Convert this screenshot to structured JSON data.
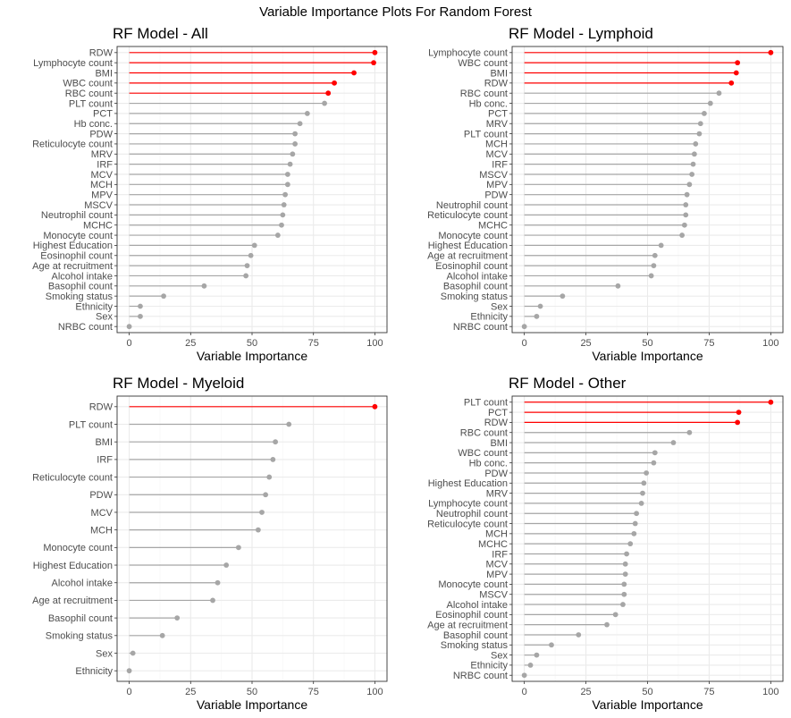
{
  "figure": {
    "title": "Variable Importance Plots For Random Forest"
  },
  "colors": {
    "highlight": "#ff0000",
    "normal": "#a6a6a6",
    "panel_border": "#333333",
    "grid_major": "#ebebeb",
    "grid_minor": "#f5f5f5",
    "tick_text": "#4d4d4d"
  },
  "chart_data": [
    {
      "type": "lollipop",
      "title": "RF Model - All",
      "xlabel": "Variable Importance",
      "ylabel": "",
      "xlim": [
        0,
        100
      ],
      "xticks": [
        "0",
        "25",
        "50",
        "75",
        "100"
      ],
      "grid": true,
      "categories": [
        "RDW",
        "Lymphocyte count",
        "BMI",
        "WBC count",
        "RBC count",
        "PLT count",
        "PCT",
        "Hb conc.",
        "PDW",
        "Reticulocyte count",
        "MRV",
        "IRF",
        "MCV",
        "MCH",
        "MPV",
        "MSCV",
        "Neutrophil count",
        "MCHC",
        "Monocyte count",
        "Highest Education",
        "Eosinophil count",
        "Age at recruitment",
        "Alcohol intake",
        "Basophil count",
        "Smoking status",
        "Ethnicity",
        "Sex",
        "NRBC count"
      ],
      "values": [
        100,
        99.5,
        91.5,
        83.5,
        81,
        79.5,
        72.5,
        69.5,
        67.5,
        67.5,
        66.5,
        65.5,
        64.5,
        64.5,
        63.5,
        63,
        62.5,
        62,
        60.5,
        51,
        49.5,
        48,
        47.5,
        30.5,
        14,
        4.5,
        4.5,
        0
      ],
      "highlighted": [
        true,
        true,
        true,
        true,
        true,
        false,
        false,
        false,
        false,
        false,
        false,
        false,
        false,
        false,
        false,
        false,
        false,
        false,
        false,
        false,
        false,
        false,
        false,
        false,
        false,
        false,
        false,
        false
      ]
    },
    {
      "type": "lollipop",
      "title": "RF Model - Lymphoid",
      "xlabel": "Variable Importance",
      "ylabel": "",
      "xlim": [
        0,
        100
      ],
      "xticks": [
        "0",
        "25",
        "50",
        "75",
        "100"
      ],
      "grid": true,
      "categories": [
        "Lymphocyte count",
        "WBC count",
        "BMI",
        "RDW",
        "RBC count",
        "Hb conc.",
        "PCT",
        "MRV",
        "PLT count",
        "MCH",
        "MCV",
        "IRF",
        "MSCV",
        "MPV",
        "PDW",
        "Neutrophil count",
        "Reticulocyte count",
        "MCHC",
        "Monocyte count",
        "Highest Education",
        "Age at recruitment",
        "Eosinophil count",
        "Alcohol intake",
        "Basophil count",
        "Smoking status",
        "Sex",
        "Ethnicity",
        "NRBC count"
      ],
      "values": [
        100,
        86.5,
        86,
        84,
        79,
        75.5,
        73,
        71.5,
        71,
        69.5,
        69,
        68.5,
        68,
        67,
        66,
        65.5,
        65.5,
        65,
        64,
        55.5,
        53,
        52.5,
        51.5,
        38,
        15.5,
        6.5,
        5,
        0
      ],
      "highlighted": [
        true,
        true,
        true,
        true,
        false,
        false,
        false,
        false,
        false,
        false,
        false,
        false,
        false,
        false,
        false,
        false,
        false,
        false,
        false,
        false,
        false,
        false,
        false,
        false,
        false,
        false,
        false,
        false
      ]
    },
    {
      "type": "lollipop",
      "title": "RF Model - Myeloid",
      "xlabel": "Variable Importance",
      "ylabel": "",
      "xlim": [
        0,
        100
      ],
      "xticks": [
        "0",
        "25",
        "50",
        "75",
        "100"
      ],
      "grid": true,
      "categories": [
        "RDW",
        "PLT count",
        "BMI",
        "IRF",
        "Reticulocyte count",
        "PDW",
        "MCV",
        "MCH",
        "Monocyte count",
        "Highest Education",
        "Alcohol intake",
        "Age at recruitment",
        "Basophil count",
        "Smoking status",
        "Sex",
        "Ethnicity"
      ],
      "values": [
        100,
        65,
        59.5,
        58.5,
        57,
        55.5,
        54,
        52.5,
        44.5,
        39.5,
        36,
        34,
        19.5,
        13.5,
        1.5,
        0
      ],
      "highlighted": [
        true,
        false,
        false,
        false,
        false,
        false,
        false,
        false,
        false,
        false,
        false,
        false,
        false,
        false,
        false,
        false
      ]
    },
    {
      "type": "lollipop",
      "title": "RF Model - Other",
      "xlabel": "Variable Importance",
      "ylabel": "",
      "xlim": [
        0,
        100
      ],
      "xticks": [
        "0",
        "25",
        "50",
        "75",
        "100"
      ],
      "grid": true,
      "categories": [
        "PLT count",
        "PCT",
        "RDW",
        "RBC count",
        "BMI",
        "WBC count",
        "Hb conc.",
        "PDW",
        "Highest Education",
        "MRV",
        "Lymphocyte count",
        "Neutrophil count",
        "Reticulocyte count",
        "MCH",
        "MCHC",
        "IRF",
        "MCV",
        "MPV",
        "Monocyte count",
        "MSCV",
        "Alcohol intake",
        "Eosinophil count",
        "Age at recruitment",
        "Basophil count",
        "Smoking status",
        "Sex",
        "Ethnicity",
        "NRBC count"
      ],
      "values": [
        100,
        87,
        86.5,
        67,
        60.5,
        53,
        52.5,
        49.5,
        48.5,
        48,
        47.5,
        45.5,
        45,
        44.5,
        43,
        41.5,
        41,
        41,
        40.5,
        40.5,
        40,
        37,
        33.5,
        22,
        11,
        5,
        2.5,
        0
      ],
      "highlighted": [
        true,
        true,
        true,
        false,
        false,
        false,
        false,
        false,
        false,
        false,
        false,
        false,
        false,
        false,
        false,
        false,
        false,
        false,
        false,
        false,
        false,
        false,
        false,
        false,
        false,
        false,
        false,
        false
      ]
    }
  ]
}
